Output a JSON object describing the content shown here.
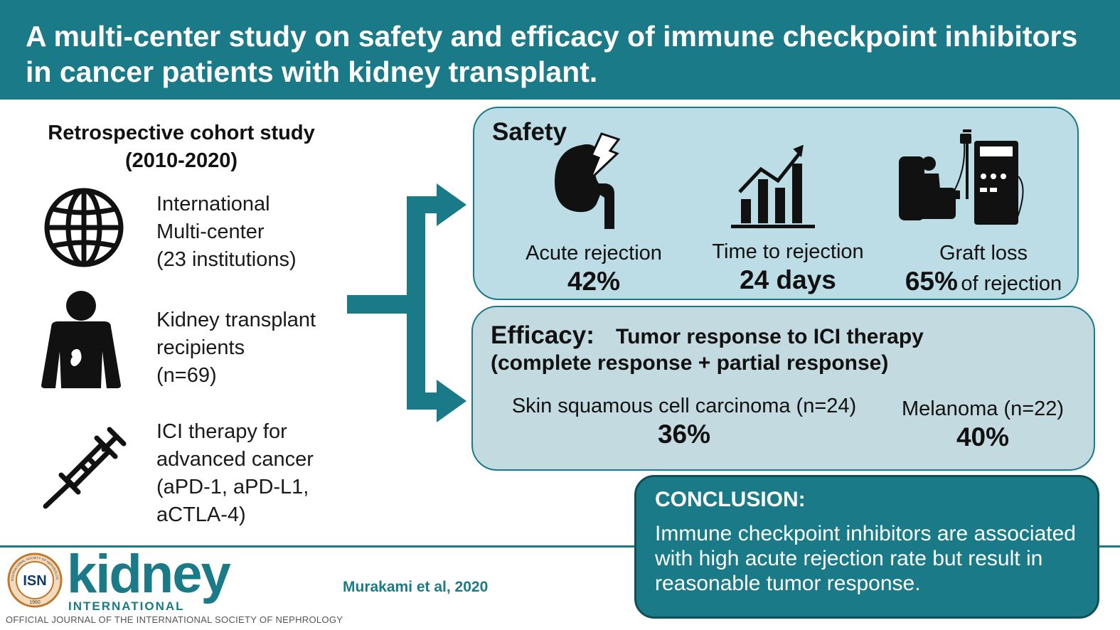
{
  "header": {
    "title": "A multi-center study on safety and efficacy of immune checkpoint inhibitors in cancer patients with kidney transplant."
  },
  "study": {
    "title_line1": "Retrospective cohort study",
    "title_line2": "(2010-2020)",
    "items": [
      {
        "icon": "globe-icon",
        "lines": [
          "International",
          "Multi-center",
          "(23 institutions)"
        ]
      },
      {
        "icon": "patient-kidney-icon",
        "lines": [
          "Kidney transplant",
          "recipients",
          "(n=69)"
        ]
      },
      {
        "icon": "syringe-icon",
        "lines": [
          "ICI therapy for",
          "advanced cancer",
          "(aPD-1, aPD-L1,",
          "aCTLA-4)"
        ]
      }
    ]
  },
  "safety": {
    "title": "Safety",
    "metrics": [
      {
        "icon": "kidney-lightning-icon",
        "label": "Acute rejection",
        "value": "42%"
      },
      {
        "icon": "bar-chart-icon",
        "label": "Time to rejection",
        "value": "24 days"
      },
      {
        "icon": "dialysis-icon",
        "label": "Graft loss",
        "value": "65%",
        "suffix": "of rejection"
      }
    ]
  },
  "efficacy": {
    "title": "Efficacy:",
    "subtitle_line1": "Tumor response to ICI therapy",
    "subtitle_line2": "(complete response + partial response)",
    "metrics": [
      {
        "label": "Skin squamous cell carcinoma (n=24)",
        "value": "36%"
      },
      {
        "label": "Melanoma (n=22)",
        "value": "40%"
      }
    ]
  },
  "conclusion": {
    "title": "CONCLUSION:",
    "text": "Immune checkpoint inhibitors are associated with high acute rejection rate but result in reasonable tumor response."
  },
  "footer": {
    "isn_label": "ISN",
    "isn_ring_text": "INTERNATIONAL SOCIETY OF NEPHROLOGY",
    "isn_year": "1960",
    "logo": "kidney",
    "logo_sub": "INTERNATIONAL",
    "journal": "OFFICIAL JOURNAL OF THE INTERNATIONAL SOCIETY OF NEPHROLOGY",
    "citation": "Murakami et al, 2020"
  },
  "colors": {
    "teal": "#1a7a87",
    "safety_bg": "#bcdde6",
    "efficacy_bg": "#c3dbe0"
  }
}
